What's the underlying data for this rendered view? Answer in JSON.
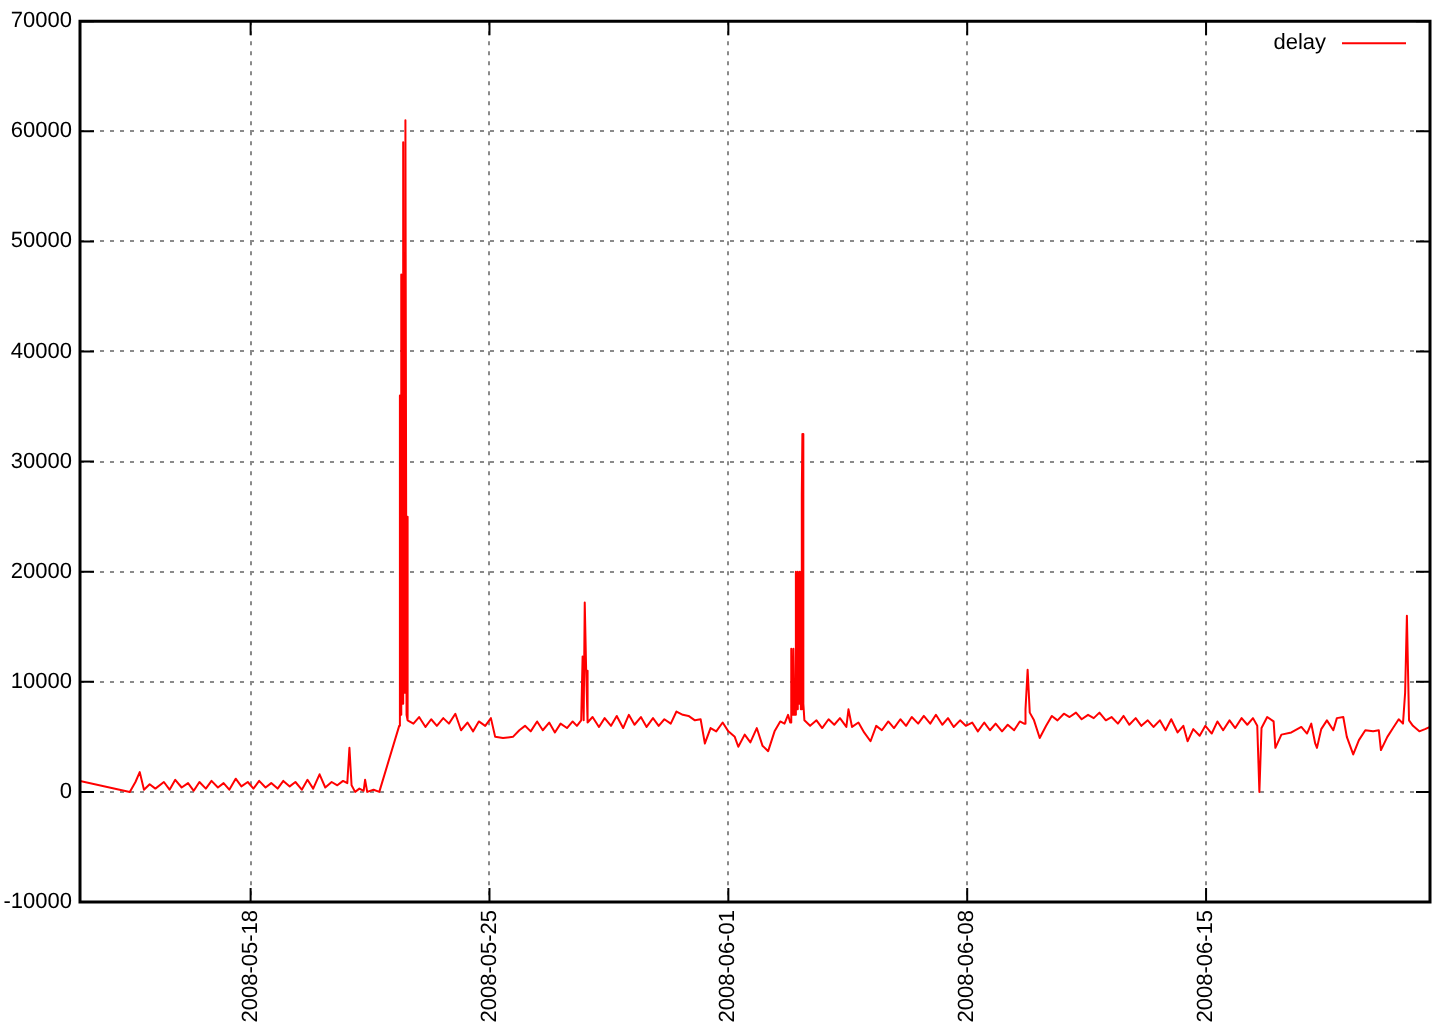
{
  "chart_data": {
    "type": "line",
    "x": [
      "2008-05-13T00:00",
      "2008-05-14T11:00",
      "2008-05-14T15:00",
      "2008-05-14T18:00",
      "2008-05-14T21:00",
      "2008-05-15T01:00",
      "2008-05-15T05:00",
      "2008-05-15T11:00",
      "2008-05-15T15:00",
      "2008-05-15T19:00",
      "2008-05-15T23:30",
      "2008-05-16T04:00",
      "2008-05-16T08:00",
      "2008-05-16T12:00",
      "2008-05-16T16:30",
      "2008-05-16T20:30",
      "2008-05-17T01:00",
      "2008-05-17T05:00",
      "2008-05-17T09:00",
      "2008-05-17T13:30",
      "2008-05-17T17:30",
      "2008-05-17T22:00",
      "2008-05-18T02:00",
      "2008-05-18T06:00",
      "2008-05-18T10:30",
      "2008-05-18T14:30",
      "2008-05-18T19:00",
      "2008-05-18T23:00",
      "2008-05-19T03:30",
      "2008-05-19T07:30",
      "2008-05-19T12:00",
      "2008-05-19T16:00",
      "2008-05-19T20:00",
      "2008-05-20T00:30",
      "2008-05-20T04:30",
      "2008-05-20T09:00",
      "2008-05-20T13:00",
      "2008-05-20T17:00",
      "2008-05-20T20:00",
      "2008-05-20T21:30",
      "2008-05-20T23:00",
      "2008-05-21T01:30",
      "2008-05-21T04:30",
      "2008-05-21T07:30",
      "2008-05-21T08:30",
      "2008-05-21T10:00",
      "2008-05-21T14:30",
      "2008-05-21T18:30",
      "2008-05-22T08:30",
      "2008-05-22T09:00",
      "2008-05-22T09:20",
      "2008-05-22T09:45",
      "2008-05-22T10:10",
      "2008-05-22T10:30",
      "2008-05-22T10:55",
      "2008-05-22T11:20",
      "2008-05-22T11:40",
      "2008-05-22T12:05",
      "2008-05-22T12:30",
      "2008-05-22T13:15",
      "2008-05-22T13:40",
      "2008-05-22T14:10",
      "2008-05-22T14:40",
      "2008-05-22T18:30",
      "2008-05-22T22:30",
      "2008-05-23T03:00",
      "2008-05-23T07:00",
      "2008-05-23T11:00",
      "2008-05-23T15:30",
      "2008-05-23T19:30",
      "2008-05-24T00:00",
      "2008-05-24T04:00",
      "2008-05-24T08:30",
      "2008-05-24T12:30",
      "2008-05-24T16:30",
      "2008-05-24T21:00",
      "2008-05-25T01:00",
      "2008-05-25T04:00",
      "2008-05-25T09:30",
      "2008-05-25T16:30",
      "2008-05-25T21:00",
      "2008-05-26T01:00",
      "2008-05-26T05:00",
      "2008-05-26T09:30",
      "2008-05-26T13:30",
      "2008-05-26T18:00",
      "2008-05-26T22:00",
      "2008-05-27T02:00",
      "2008-05-27T06:30",
      "2008-05-27T10:30",
      "2008-05-27T13:30",
      "2008-05-27T16:30",
      "2008-05-27T17:30",
      "2008-05-27T18:15",
      "2008-05-27T19:00",
      "2008-05-27T20:00",
      "2008-05-27T21:00",
      "2008-05-28T00:30",
      "2008-05-28T05:00",
      "2008-05-28T09:00",
      "2008-05-28T13:30",
      "2008-05-28T17:30",
      "2008-05-28T22:00",
      "2008-05-29T02:00",
      "2008-05-29T06:00",
      "2008-05-29T10:30",
      "2008-05-29T14:30",
      "2008-05-29T19:00",
      "2008-05-29T23:00",
      "2008-05-30T03:00",
      "2008-05-30T07:30",
      "2008-05-30T11:30",
      "2008-05-30T16:00",
      "2008-05-30T20:00",
      "2008-05-31T00:30",
      "2008-05-31T04:30",
      "2008-05-31T07:30",
      "2008-05-31T11:30",
      "2008-05-31T15:30",
      "2008-05-31T20:00",
      "2008-06-01T00:00",
      "2008-06-01T04:30",
      "2008-06-01T07:00",
      "2008-06-01T11:30",
      "2008-06-01T15:30",
      "2008-06-01T20:00",
      "2008-06-02T00:00",
      "2008-06-02T04:00",
      "2008-06-02T08:30",
      "2008-06-02T12:30",
      "2008-06-02T15:30",
      "2008-06-02T18:00",
      "2008-06-02T19:30",
      "2008-06-02T20:15",
      "2008-06-02T21:00",
      "2008-06-02T21:45",
      "2008-06-02T22:30",
      "2008-06-02T23:30",
      "2008-06-03T00:10",
      "2008-06-03T00:50",
      "2008-06-03T01:30",
      "2008-06-03T02:15",
      "2008-06-03T03:00",
      "2008-06-03T03:40",
      "2008-06-03T04:05",
      "2008-06-03T04:45",
      "2008-06-03T05:30",
      "2008-06-03T09:30",
      "2008-06-03T14:00",
      "2008-06-03T18:00",
      "2008-06-03T22:30",
      "2008-06-04T02:30",
      "2008-06-04T06:30",
      "2008-06-04T11:00",
      "2008-06-04T12:30",
      "2008-06-04T15:00",
      "2008-06-04T19:30",
      "2008-06-04T23:30",
      "2008-06-05T04:00",
      "2008-06-05T08:00",
      "2008-06-05T12:00",
      "2008-06-05T16:30",
      "2008-06-05T20:30",
      "2008-06-06T01:00",
      "2008-06-06T05:00",
      "2008-06-06T09:00",
      "2008-06-06T13:30",
      "2008-06-06T17:30",
      "2008-06-06T22:00",
      "2008-06-07T02:00",
      "2008-06-07T06:30",
      "2008-06-07T10:30",
      "2008-06-07T14:30",
      "2008-06-07T19:00",
      "2008-06-07T23:00",
      "2008-06-08T03:30",
      "2008-06-08T07:30",
      "2008-06-08T12:00",
      "2008-06-08T16:00",
      "2008-06-08T20:00",
      "2008-06-09T00:30",
      "2008-06-09T04:30",
      "2008-06-09T09:00",
      "2008-06-09T13:00",
      "2008-06-09T16:00",
      "2008-06-09T17:00",
      "2008-06-09T18:30",
      "2008-06-09T20:00",
      "2008-06-09T23:00",
      "2008-06-10T03:00",
      "2008-06-10T07:30",
      "2008-06-10T11:30",
      "2008-06-10T15:30",
      "2008-06-10T20:00",
      "2008-06-11T00:00",
      "2008-06-11T04:30",
      "2008-06-11T08:30",
      "2008-06-11T13:00",
      "2008-06-11T17:00",
      "2008-06-11T21:00",
      "2008-06-12T01:30",
      "2008-06-12T05:30",
      "2008-06-12T10:00",
      "2008-06-12T14:00",
      "2008-06-12T18:00",
      "2008-06-12T22:30",
      "2008-06-13T02:30",
      "2008-06-13T07:00",
      "2008-06-13T11:00",
      "2008-06-13T15:30",
      "2008-06-13T19:30",
      "2008-06-13T23:30",
      "2008-06-14T04:00",
      "2008-06-14T08:00",
      "2008-06-14T11:00",
      "2008-06-14T15:00",
      "2008-06-14T19:30",
      "2008-06-14T23:30",
      "2008-06-15T04:00",
      "2008-06-15T08:00",
      "2008-06-15T12:00",
      "2008-06-15T16:30",
      "2008-06-15T20:30",
      "2008-06-16T01:00",
      "2008-06-16T05:00",
      "2008-06-16T09:00",
      "2008-06-16T12:00",
      "2008-06-16T13:30",
      "2008-06-16T15:00",
      "2008-06-16T19:00",
      "2008-06-16T23:30",
      "2008-06-17T00:45",
      "2008-06-17T05:00",
      "2008-06-17T12:00",
      "2008-06-17T19:00",
      "2008-06-17T23:00",
      "2008-06-18T02:00",
      "2008-06-18T04:45",
      "2008-06-18T06:00",
      "2008-06-18T09:00",
      "2008-06-18T13:00",
      "2008-06-18T17:30",
      "2008-06-18T20:00",
      "2008-06-19T00:30",
      "2008-06-19T03:00",
      "2008-06-19T07:30",
      "2008-06-19T11:30",
      "2008-06-19T16:00",
      "2008-06-19T21:30",
      "2008-06-20T01:30",
      "2008-06-20T03:00",
      "2008-06-20T07:30",
      "2008-06-20T11:30",
      "2008-06-20T15:30",
      "2008-06-20T18:30",
      "2008-06-20T20:00",
      "2008-06-20T21:15",
      "2008-06-20T22:45",
      "2008-06-21T01:30",
      "2008-06-21T06:00",
      "2008-06-21T10:00",
      "2008-06-21T13:30"
    ],
    "series": [
      {
        "name": "delay",
        "color": "#ff0000",
        "values": [
          1000,
          0,
          900,
          1800,
          200,
          700,
          300,
          900,
          200,
          1100,
          400,
          800,
          100,
          900,
          300,
          1000,
          400,
          800,
          200,
          1200,
          500,
          900,
          300,
          1000,
          400,
          800,
          300,
          1000,
          500,
          900,
          200,
          1100,
          300,
          1600,
          400,
          900,
          600,
          1000,
          800,
          4000,
          600,
          0,
          300,
          100,
          1100,
          0,
          200,
          0,
          6000,
          36000,
          7000,
          36000,
          47000,
          8000,
          47000,
          8000,
          59000,
          9000,
          59000,
          61000,
          7000,
          25000,
          6500,
          6200,
          6800,
          5900,
          6600,
          6000,
          6700,
          6200,
          7100,
          5600,
          6300,
          5500,
          6400,
          6000,
          6700,
          5000,
          4900,
          5000,
          5600,
          6000,
          5500,
          6400,
          5600,
          6300,
          5400,
          6200,
          5800,
          6400,
          6000,
          6500,
          12300,
          6500,
          17200,
          11000,
          6300,
          6800,
          5900,
          6700,
          6000,
          6900,
          5800,
          7000,
          6100,
          6800,
          5900,
          6700,
          6000,
          6600,
          6200,
          7300,
          7000,
          6900,
          6500,
          6600,
          4400,
          5800,
          5500,
          6300,
          5500,
          5000,
          4100,
          5200,
          4500,
          5800,
          4200,
          3700,
          5500,
          6400,
          6200,
          7000,
          6300,
          13000,
          7000,
          13000,
          7000,
          20000,
          7500,
          20000,
          8000,
          20000,
          7500,
          27000,
          32500,
          8000,
          6500,
          6000,
          6500,
          5800,
          6600,
          6100,
          6700,
          5900,
          7500,
          5900,
          6300,
          5400,
          4600,
          6000,
          5600,
          6400,
          5800,
          6600,
          6000,
          6800,
          6200,
          6900,
          6200,
          7000,
          6100,
          6700,
          5900,
          6500,
          6000,
          6300,
          5500,
          6300,
          5600,
          6200,
          5500,
          6100,
          5600,
          6400,
          6200,
          7500,
          11100,
          7200,
          6500,
          4900,
          6000,
          6900,
          6500,
          7100,
          6800,
          7200,
          6600,
          7000,
          6700,
          7200,
          6500,
          6800,
          6200,
          6900,
          6100,
          6700,
          6000,
          6500,
          5900,
          6500,
          5600,
          6600,
          5400,
          6000,
          4600,
          5700,
          5100,
          6000,
          5300,
          6400,
          5600,
          6500,
          5800,
          6700,
          6100,
          6700,
          6000,
          0,
          5800,
          6800,
          6400,
          4000,
          5200,
          5400,
          5900,
          5300,
          6200,
          4400,
          4000,
          5700,
          6500,
          5600,
          6700,
          6800,
          5000,
          3400,
          4700,
          5600,
          5500,
          5600,
          3800,
          5000,
          5800,
          6600,
          6200,
          9000,
          16000,
          6500,
          6000,
          5500,
          5700,
          5900
        ]
      }
    ],
    "xlim": [
      "2008-05-13",
      "2008-06-21T13:30"
    ],
    "xticks": [
      "2008-05-18",
      "2008-05-25",
      "2008-06-01",
      "2008-06-08",
      "2008-06-15"
    ],
    "ylim": [
      -10000,
      70000
    ],
    "yticks": [
      -10000,
      0,
      10000,
      20000,
      30000,
      40000,
      50000,
      60000,
      70000
    ],
    "grid": true,
    "legend": "top right"
  }
}
